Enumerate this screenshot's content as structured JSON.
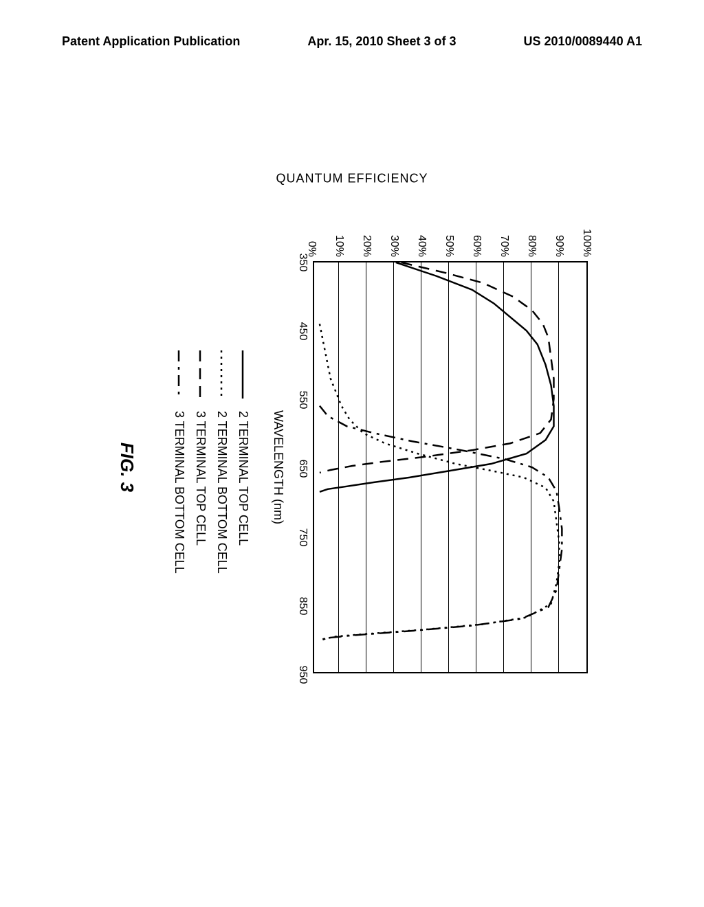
{
  "header": {
    "left": "Patent Application Publication",
    "center": "Apr. 15, 2010  Sheet 3 of 3",
    "right": "US 2010/0089440 A1"
  },
  "chart": {
    "type": "line",
    "xlabel": "WAVELENGTH (nm)",
    "ylabel": "QUANTUM EFFICIENCY",
    "xlim": [
      350,
      950
    ],
    "ylim": [
      0,
      100
    ],
    "xticks": [
      350,
      450,
      550,
      650,
      750,
      850,
      950
    ],
    "yticks": [
      0,
      10,
      20,
      30,
      40,
      50,
      60,
      70,
      80,
      90,
      100
    ],
    "ytick_suffix": "%",
    "grid_color": "#000000",
    "background_color": "#ffffff",
    "line_width": 2.5,
    "series": [
      {
        "name": "2 TERMINAL TOP CELL",
        "dash": "solid",
        "points": [
          [
            350,
            30
          ],
          [
            370,
            45
          ],
          [
            390,
            58
          ],
          [
            410,
            66
          ],
          [
            430,
            72
          ],
          [
            450,
            78
          ],
          [
            470,
            82
          ],
          [
            500,
            85
          ],
          [
            530,
            87
          ],
          [
            560,
            88
          ],
          [
            590,
            88
          ],
          [
            610,
            85
          ],
          [
            630,
            78
          ],
          [
            645,
            65
          ],
          [
            655,
            50
          ],
          [
            665,
            35
          ],
          [
            672,
            22
          ],
          [
            678,
            12
          ],
          [
            682,
            5
          ],
          [
            686,
            2
          ]
        ]
      },
      {
        "name": "2 TERMINAL BOTTOM CELL",
        "dash": "dotted",
        "points": [
          [
            440,
            2
          ],
          [
            460,
            3
          ],
          [
            480,
            4
          ],
          [
            500,
            5
          ],
          [
            520,
            6
          ],
          [
            540,
            8
          ],
          [
            560,
            10
          ],
          [
            580,
            13
          ],
          [
            600,
            18
          ],
          [
            615,
            26
          ],
          [
            630,
            38
          ],
          [
            645,
            52
          ],
          [
            655,
            65
          ],
          [
            665,
            77
          ],
          [
            680,
            85
          ],
          [
            700,
            88
          ],
          [
            730,
            89
          ],
          [
            760,
            90
          ],
          [
            790,
            90
          ],
          [
            820,
            89
          ],
          [
            850,
            87
          ],
          [
            870,
            78
          ],
          [
            880,
            62
          ],
          [
            888,
            40
          ],
          [
            894,
            20
          ],
          [
            898,
            8
          ],
          [
            902,
            3
          ]
        ]
      },
      {
        "name": "3 TERMINAL TOP CELL",
        "dash": "long-dash",
        "points": [
          [
            350,
            32
          ],
          [
            365,
            48
          ],
          [
            380,
            62
          ],
          [
            400,
            73
          ],
          [
            420,
            80
          ],
          [
            440,
            84
          ],
          [
            460,
            86
          ],
          [
            490,
            87
          ],
          [
            520,
            88
          ],
          [
            550,
            88
          ],
          [
            580,
            87
          ],
          [
            600,
            83
          ],
          [
            615,
            72
          ],
          [
            625,
            58
          ],
          [
            635,
            40
          ],
          [
            642,
            25
          ],
          [
            648,
            14
          ],
          [
            654,
            6
          ],
          [
            658,
            2
          ]
        ]
      },
      {
        "name": "3 TERMINAL BOTTOM CELL",
        "dash": "dash-dot",
        "points": [
          [
            560,
            2
          ],
          [
            575,
            5
          ],
          [
            590,
            12
          ],
          [
            600,
            22
          ],
          [
            612,
            36
          ],
          [
            625,
            54
          ],
          [
            638,
            70
          ],
          [
            650,
            80
          ],
          [
            665,
            86
          ],
          [
            685,
            89
          ],
          [
            710,
            90
          ],
          [
            740,
            91
          ],
          [
            770,
            91
          ],
          [
            800,
            90
          ],
          [
            830,
            89
          ],
          [
            855,
            86
          ],
          [
            872,
            76
          ],
          [
            882,
            58
          ],
          [
            890,
            35
          ],
          [
            896,
            15
          ],
          [
            900,
            5
          ],
          [
            904,
            2
          ]
        ]
      }
    ]
  },
  "legend": {
    "items": [
      {
        "label": "2 TERMINAL TOP CELL",
        "dash": "solid"
      },
      {
        "label": "2 TERMINAL BOTTOM CELL",
        "dash": "dotted"
      },
      {
        "label": "3 TERMINAL TOP CELL",
        "dash": "long-dash"
      },
      {
        "label": "3 TERMINAL BOTTOM CELL",
        "dash": "dash-dot"
      }
    ]
  },
  "figure_label": "FIG. 3"
}
